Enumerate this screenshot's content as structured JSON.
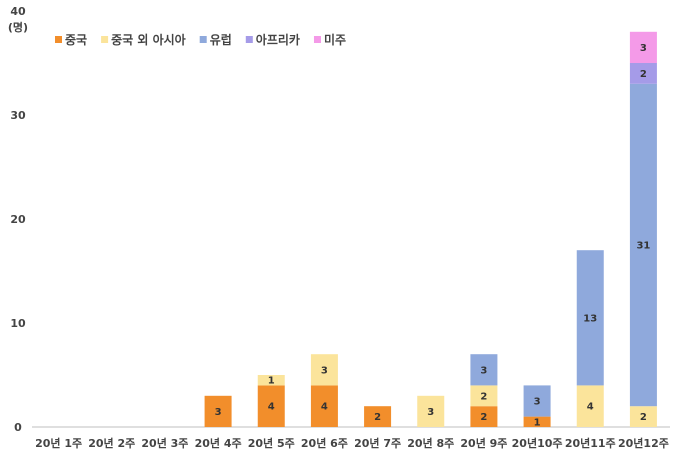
{
  "chart_data": {
    "type": "bar",
    "stacked": true,
    "ylabel_value": "40",
    "ylabel_unit": "(명)",
    "ylim": [
      0,
      40
    ],
    "yticks": [
      "0",
      "10",
      "20",
      "30"
    ],
    "grid": false,
    "legend_position": "top-left",
    "categories": [
      "20년 1주",
      "20년 2주",
      "20년 3주",
      "20년 4주",
      "20년 5주",
      "20년 6주",
      "20년 7주",
      "20년 8주",
      "20년 9주",
      "20년10주",
      "20년11주",
      "20년12주"
    ],
    "series": [
      {
        "name": "중국",
        "color": "#f28e2b",
        "values": [
          0,
          0,
          0,
          3,
          4,
          4,
          2,
          0,
          2,
          1,
          0,
          0
        ]
      },
      {
        "name": "중국 외 아시아",
        "color": "#fbe49b",
        "values": [
          0,
          0,
          0,
          0,
          1,
          3,
          0,
          3,
          2,
          0,
          4,
          2
        ]
      },
      {
        "name": "유럽",
        "color": "#8fa9dc",
        "values": [
          0,
          0,
          0,
          0,
          0,
          0,
          0,
          0,
          3,
          3,
          13,
          31
        ]
      },
      {
        "name": "아프리카",
        "color": "#a59be8",
        "values": [
          0,
          0,
          0,
          0,
          0,
          0,
          0,
          0,
          0,
          0,
          0,
          2
        ]
      },
      {
        "name": "미주",
        "color": "#f49ae8",
        "values": [
          0,
          0,
          0,
          0,
          0,
          0,
          0,
          0,
          0,
          0,
          0,
          3
        ]
      }
    ]
  }
}
